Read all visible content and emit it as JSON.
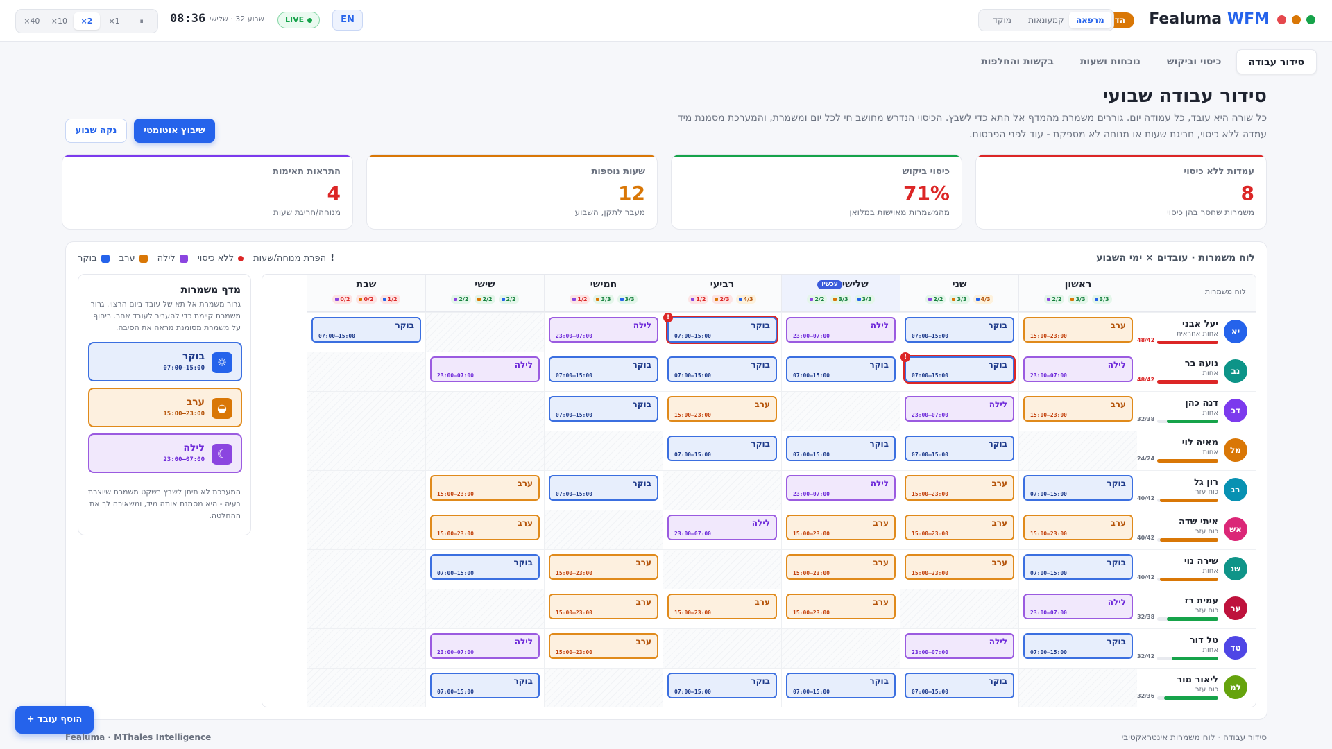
{
  "window_controls": {
    "colors": [
      "#e5484d",
      "#d97706",
      "#16a34a"
    ]
  },
  "topbar": {
    "brand_prefix": "Fealuma",
    "brand_suffix": "WFM",
    "demo_badge": "הדמיה",
    "modes": [
      {
        "label": "מרפאה",
        "active": true
      },
      {
        "label": "קמעונאות",
        "active": false
      },
      {
        "label": "מוקד",
        "active": false
      }
    ],
    "speeds": [
      {
        "label": "⏸",
        "active": false
      },
      {
        "label": "×1",
        "active": false
      },
      {
        "label": "×2",
        "active": true
      },
      {
        "label": "×10",
        "active": false
      },
      {
        "label": "×40",
        "active": false
      }
    ],
    "clock": "08:36",
    "date_line": "שבוע 32 · שלישי",
    "live_label": "LIVE",
    "lang_label": "EN"
  },
  "tabs": [
    {
      "label": "סידור עבודה",
      "active": true
    },
    {
      "label": "כיסוי וביקוש",
      "active": false
    },
    {
      "label": "נוכחות ושעות",
      "active": false
    },
    {
      "label": "בקשות והחלפות",
      "active": false
    }
  ],
  "header": {
    "title": "סידור עבודה שבועי",
    "description": "כל שורה היא עובד, כל עמודה יום. גוררים משמרת מהמדף אל התא כדי לשבץ. הכיסוי הנדרש מחושב חי לכל יום ומשמרת, והמערכת מסמנת מיד עמדה ללא כיסוי, חריגת שעות או מנוחה לא מספקת - עוד לפני הפרסום.",
    "auto_button": "שיבוץ אוטומטי",
    "clear_button": "נקה שבוע"
  },
  "kpis": [
    {
      "label": "עמדות ללא כיסוי",
      "value": "8",
      "sub": "משמרות שחסר בהן כיסוי",
      "color": "#dc2626"
    },
    {
      "label": "כיסוי ביקוש",
      "value": "71%",
      "sub": "מהמשמרות מאוישות במלואן",
      "color": "#16a34a",
      "value_color": "#dc2626"
    },
    {
      "label": "שעות נוספות",
      "value": "12",
      "sub": "מעבר לתקן, השבוע",
      "color": "#d97706"
    },
    {
      "label": "התראות תאימות",
      "value": "4",
      "sub": "מנוחה/חריגת שעות",
      "color": "#7c3aed",
      "value_color": "#dc2626"
    }
  ],
  "board": {
    "title": "לוח משמרות · עובדים × ימי השבוע",
    "legend": [
      {
        "label": "בוקר",
        "color": "#2563eb"
      },
      {
        "label": "ערב",
        "color": "#d97706"
      },
      {
        "label": "לילה",
        "color": "#8b45e0"
      },
      {
        "label": "ללא כיסוי",
        "color": "#dc2626"
      },
      {
        "label": "הפרת מנוחה/שעות",
        "glyph": "!"
      }
    ],
    "employees_header": "לוח משמרות",
    "today_badge": "עכשיו",
    "days": [
      {
        "name": "ראשון",
        "coverage": [
          "3/3",
          "3/3",
          "2/2"
        ],
        "status": [
          "ok",
          "ok",
          "ok"
        ]
      },
      {
        "name": "שני",
        "coverage": [
          "4/3",
          "3/3",
          "2/2"
        ],
        "status": [
          "warn",
          "ok",
          "ok"
        ]
      },
      {
        "name": "שלישי",
        "today": true,
        "coverage": [
          "3/3",
          "3/3",
          "2/2"
        ],
        "status": [
          "ok",
          "ok",
          "ok"
        ]
      },
      {
        "name": "רביעי",
        "coverage": [
          "4/3",
          "2/3",
          "1/2"
        ],
        "status": [
          "warn",
          "bad",
          "bad"
        ]
      },
      {
        "name": "חמישי",
        "coverage": [
          "3/3",
          "3/3",
          "1/2"
        ],
        "status": [
          "ok",
          "ok",
          "bad"
        ]
      },
      {
        "name": "שישי",
        "coverage": [
          "2/2",
          "2/2",
          "2/2"
        ],
        "status": [
          "ok",
          "ok",
          "ok"
        ]
      },
      {
        "name": "שבת",
        "coverage": [
          "1/2",
          "0/2",
          "0/2"
        ],
        "status": [
          "bad",
          "bad",
          "bad"
        ]
      }
    ],
    "shift_names": {
      "morning": "בוקר",
      "evening": "ערב",
      "night": "לילה"
    },
    "shift_times": {
      "morning": "07:00–15:00",
      "evening": "15:00–23:00",
      "night": "23:00–07:00"
    },
    "employees": [
      {
        "initials": "יא",
        "name": "יעל אבני",
        "role": "אחות אחראית",
        "hours": "48/42",
        "fill": 1.0,
        "bar": "#dc2626",
        "over": true,
        "avatar": "#2563eb",
        "shifts": [
          "evening",
          "morning",
          "night",
          "morning",
          "night",
          null,
          "morning"
        ],
        "alerts": [
          3
        ]
      },
      {
        "initials": "נב",
        "name": "נועה בר",
        "role": "אחות",
        "hours": "48/42",
        "fill": 1.0,
        "bar": "#dc2626",
        "over": true,
        "avatar": "#0d9488",
        "shifts": [
          "night",
          "morning",
          "morning",
          "morning",
          "morning",
          "night",
          null
        ],
        "alerts": [
          1
        ]
      },
      {
        "initials": "דכ",
        "name": "דנה כהן",
        "role": "אחות",
        "hours": "32/38",
        "fill": 0.84,
        "bar": "#16a34a",
        "over": false,
        "avatar": "#7c3aed",
        "shifts": [
          "evening",
          "night",
          null,
          "evening",
          "morning",
          null,
          null
        ],
        "alerts": []
      },
      {
        "initials": "מל",
        "name": "מאיה לוי",
        "role": "אחות",
        "hours": "24/24",
        "fill": 1.0,
        "bar": "#d97706",
        "over": false,
        "avatar": "#d97706",
        "shifts": [
          null,
          "morning",
          "morning",
          "morning",
          null,
          null,
          null
        ],
        "alerts": []
      },
      {
        "initials": "רג",
        "name": "רון גל",
        "role": "כוח עזר",
        "hours": "40/42",
        "fill": 0.95,
        "bar": "#d97706",
        "over": false,
        "avatar": "#0891b2",
        "shifts": [
          "morning",
          "evening",
          "night",
          null,
          "morning",
          "evening",
          null
        ],
        "alerts": []
      },
      {
        "initials": "אש",
        "name": "איתי שדה",
        "role": "כוח עזר",
        "hours": "40/42",
        "fill": 0.95,
        "bar": "#d97706",
        "over": false,
        "avatar": "#db2777",
        "shifts": [
          "evening",
          "evening",
          "evening",
          "night",
          null,
          "evening",
          null
        ],
        "alerts": []
      },
      {
        "initials": "שנ",
        "name": "שירה נוי",
        "role": "אחות",
        "hours": "40/42",
        "fill": 0.95,
        "bar": "#d97706",
        "over": false,
        "avatar": "#0f9488",
        "shifts": [
          "morning",
          "evening",
          "evening",
          null,
          "evening",
          "morning",
          null
        ],
        "alerts": []
      },
      {
        "initials": "ער",
        "name": "עמית רז",
        "role": "כוח עזר",
        "hours": "32/38",
        "fill": 0.84,
        "bar": "#16a34a",
        "over": false,
        "avatar": "#be123c",
        "shifts": [
          "night",
          null,
          "evening",
          "evening",
          "evening",
          null,
          null
        ],
        "alerts": []
      },
      {
        "initials": "טד",
        "name": "טל דור",
        "role": "אחות",
        "hours": "32/42",
        "fill": 0.76,
        "bar": "#16a34a",
        "over": false,
        "avatar": "#4f46e5",
        "shifts": [
          "morning",
          "night",
          null,
          null,
          "evening",
          "night",
          null
        ],
        "alerts": []
      },
      {
        "initials": "למ",
        "name": "ליאור מור",
        "role": "כוח עזר",
        "hours": "32/36",
        "fill": 0.89,
        "bar": "#16a34a",
        "over": false,
        "avatar": "#65a30d",
        "shifts": [
          null,
          "morning",
          "morning",
          "morning",
          null,
          "morning",
          null
        ],
        "alerts": []
      }
    ]
  },
  "palette": {
    "title": "מדף משמרות",
    "description": "גרור משמרת אל תא של עובד ביום הרצוי. גרור משמרת קיימת כדי להעביר לעובד אחר. ריחוף על משמרת מסומנת מראה את הסיבה.",
    "cards": [
      {
        "type": "morning",
        "name": "בוקר",
        "time": "07:00–15:00",
        "icon": "sun-icon",
        "glyph": "☼"
      },
      {
        "type": "evening",
        "name": "ערב",
        "time": "15:00–23:00",
        "icon": "sunset-icon",
        "glyph": "◒"
      },
      {
        "type": "night",
        "name": "לילה",
        "time": "23:00–07:00",
        "icon": "moon-icon",
        "glyph": "☾"
      }
    ],
    "note": "המערכת לא תיתן לשבץ בשקט משמרת שיוצרת בעיה - היא מסמנת אותה מיד, ומשאירה לך את ההחלטה."
  },
  "footer": {
    "add_employee": "+ הוסף עובד",
    "left": "Fealuma · MThales Intelligence",
    "right": "סידור עבודה · לוח משמרות אינטראקטיבי"
  }
}
